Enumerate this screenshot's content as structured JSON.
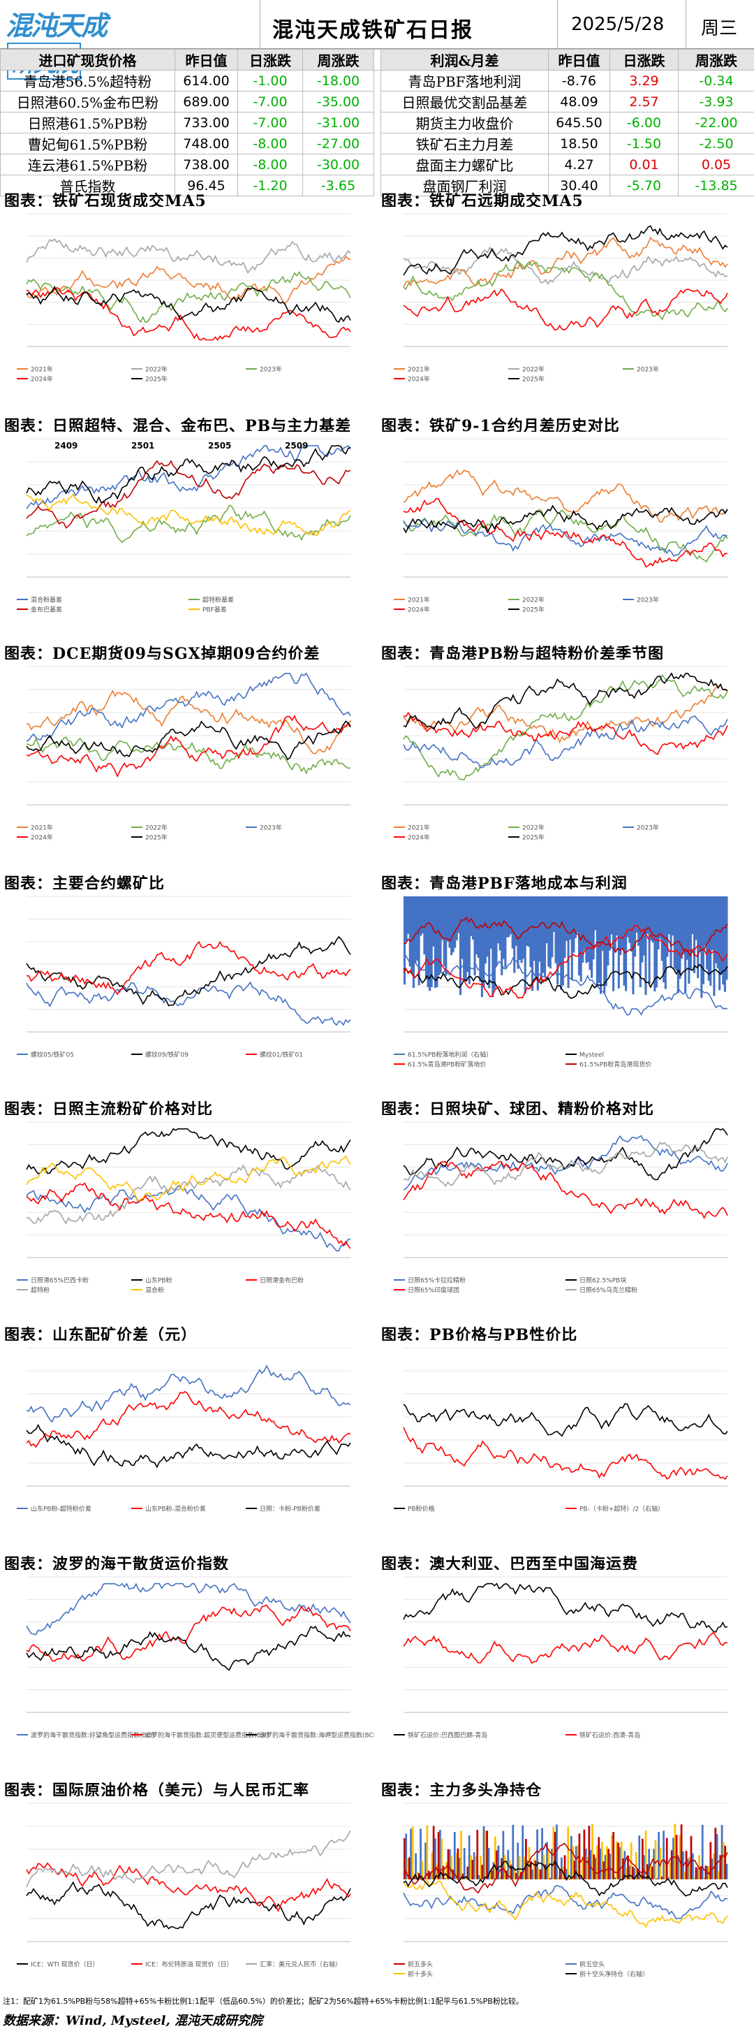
{
  "header": {
    "logo_text": "混沌天成",
    "logo_boxed": "研究院",
    "title": "混沌天成铁矿石日报",
    "date": "2025/5/28",
    "weekday": "周三"
  },
  "table": {
    "headers_left": [
      "进口矿现货价格",
      "昨日值",
      "日涨跌",
      "周涨跌"
    ],
    "headers_right": [
      "利润&月差",
      "昨日值",
      "日涨跌",
      "周涨跌"
    ],
    "rows": [
      {
        "l_name": "青岛港56.5%超特粉",
        "l_val": "614.00",
        "l_day": "-1.00",
        "l_week": "-18.00",
        "r_name": "青岛PBF落地利润",
        "r_val": "-8.76",
        "r_day": "3.29",
        "r_week": "-0.34"
      },
      {
        "l_name": "日照港60.5%金布巴粉",
        "l_val": "689.00",
        "l_day": "-7.00",
        "l_week": "-35.00",
        "r_name": "日照最优交割品基差",
        "r_val": "48.09",
        "r_day": "2.57",
        "r_week": "-3.93"
      },
      {
        "l_name": "日照港61.5%PB粉",
        "l_val": "733.00",
        "l_day": "-7.00",
        "l_week": "-31.00",
        "r_name": "期货主力收盘价",
        "r_val": "645.50",
        "r_day": "-6.00",
        "r_week": "-22.00"
      },
      {
        "l_name": "曹妃甸61.5%PB粉",
        "l_val": "748.00",
        "l_day": "-8.00",
        "l_week": "-27.00",
        "r_name": "铁矿石主力月差",
        "r_val": "18.50",
        "r_day": "-1.50",
        "r_week": "-2.50"
      },
      {
        "l_name": "连云港61.5%PB粉",
        "l_val": "738.00",
        "l_day": "-8.00",
        "l_week": "-30.00",
        "r_name": "盘面主力螺矿比",
        "r_val": "4.27",
        "r_day": "0.01",
        "r_week": "0.05"
      },
      {
        "l_name": "普氏指数",
        "l_val": "96.45",
        "l_day": "-1.20",
        "l_week": "-3.65",
        "r_name": "盘面钢厂利润",
        "r_val": "30.40",
        "r_day": "-5.70",
        "r_week": "-13.85"
      }
    ]
  },
  "panels": [
    {
      "title": "图表：铁矿石现货成交MA5",
      "legend": [
        "2021年",
        "2022年",
        "2023年",
        "2024年",
        "2025年"
      ]
    },
    {
      "title": "图表：铁矿石远期成交MA5",
      "legend": [
        "2021年",
        "2022年",
        "2023年",
        "2024年",
        "2025年"
      ]
    },
    {
      "title": "图表：日照超特、混合、金布巴、PB与主力基差",
      "legend": [
        "混合粉基差",
        "超特粉基差",
        "金布巴基差",
        "PBF基差"
      ],
      "annotations": [
        "2409",
        "2501",
        "2505",
        "2509"
      ]
    },
    {
      "title": "图表：铁矿9-1合约月差历史对比",
      "legend": [
        "2021年",
        "2022年",
        "2023年",
        "2024年",
        "2025年"
      ]
    },
    {
      "title": "图表：DCE期货09与SGX掉期09合约价差",
      "legend": [
        "2021年",
        "2022年",
        "2023年",
        "2024年",
        "2025年"
      ]
    },
    {
      "title": "图表：青岛港PB粉与超特粉价差季节图",
      "legend": [
        "2021年",
        "2022年",
        "2023年",
        "2024年",
        "2025年"
      ]
    },
    {
      "title": "图表：主要合约螺矿比",
      "legend": [
        "螺纹05/铁矿05",
        "螺纹09/铁矿09",
        "螺纹01/铁矿01"
      ]
    },
    {
      "title": "图表：青岛港PBF落地成本与利润",
      "legend": [
        "61.5%PB粉落地利润（右轴）",
        "Mysteel",
        "61.5%青岛港PB粉矿落地价",
        "61.5%PB粉青岛港现货价"
      ]
    },
    {
      "title": "图表：日照主流粉矿价格对比",
      "legend": [
        "日照港65%巴西卡粉",
        "山东PB粉",
        "日照港金布巴粉",
        "超特粉",
        "混合粉"
      ]
    },
    {
      "title": "图表：日照块矿、球团、精粉价格对比",
      "legend": [
        "日照65%卡拉拉精粉",
        "日照62.5%PB块",
        "日照65%印度球团",
        "日照65%乌克兰精粉"
      ]
    },
    {
      "title": "图表：山东配矿价差（元）",
      "legend": [
        "山东PB粉-超特粉价差",
        "山东PB粉-混合粉价差",
        "日照：卡粉-PB粉价差"
      ]
    },
    {
      "title": "图表：PB价格与PB性价比",
      "legend": [
        "PB粉价格",
        "PB-（卡粉+超特）/2（右轴）"
      ]
    },
    {
      "title": "图表：波罗的海干散货运价指数",
      "legend": [
        "波罗的海干散货指数:好望角型运费指数(BCI)",
        "波罗的海干散货指数:超灵便型运费指数(BSI)",
        "波罗的海干散货指数:海岬型运费指数(BCI)"
      ]
    },
    {
      "title": "图表：澳大利亚、巴西至中国海运费",
      "legend": [
        "铁矿石运价:巴西图巴朗-青岛",
        "铁矿石运价:西澳-青岛"
      ]
    },
    {
      "title": "图表：国际原油价格（美元）与人民币汇率",
      "legend": [
        "ICE：WTI 现货价（日）",
        "ICE：布伦特原油 现货价（日）",
        "汇率：美元兑人民币（右轴）"
      ]
    },
    {
      "title": "图表：主力多头净持仓",
      "legend": [
        "前五多头",
        "前五空头",
        "前十多头",
        "前十空头净持仓（右轴）"
      ]
    }
  ],
  "footnote": "注1：配矿1为61.5%PB粉与58%超特+65%卡粉比例1:1配平（低品60.5%）的价差比；配矿2为56%超特+65%卡粉比例1:1配平与61.5%PB粉比较。",
  "source": "数据来源：Wind, Mysteel, 混沌天成研究院",
  "colors": {
    "orange": "#ED7D31",
    "green": "#70AD47",
    "blue": "#4472C4",
    "red": "#FF0000",
    "black": "#000000",
    "yellow": "#FFC000",
    "gray": "#A5A5A5",
    "darkred": "#C00000"
  }
}
